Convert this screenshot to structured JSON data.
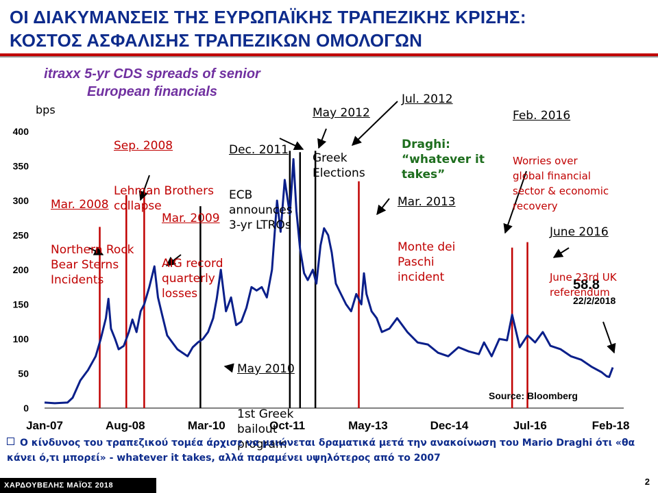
{
  "header": {
    "title_line1": "ΟΙ ΔΙΑΚΥΜΑΝΣΕΙΣ ΤΗΣ ΕΥΡΩΠΑΪΚΗΣ ΤΡΑΠΕΖΙΚΗΣ ΚΡΙΣΗΣ:",
    "title_line2": "ΚΟΣΤΟΣ ΑΣΦΑΛΙΣΗΣ ΤΡΑΠΕΖΙΚΩΝ ΟΜΟΛΟΓΩΝ"
  },
  "colors": {
    "title": "#0d2b8c",
    "accent_red": "#c00000",
    "series": "#0a1f8a",
    "green": "#1e6e1e"
  },
  "chart_data": {
    "type": "line",
    "title_line1": "itraxx 5-yr CDS spreads of senior",
    "title_line2": "European financials",
    "ylabel": "bps",
    "ylim": [
      0,
      400
    ],
    "yticks": [
      0,
      50,
      100,
      150,
      200,
      250,
      300,
      350,
      400
    ],
    "xlim": [
      2007.0,
      2018.2
    ],
    "xticks": [
      {
        "label": "Jan-07",
        "x": 2007.0
      },
      {
        "label": "Aug-08",
        "x": 2008.58
      },
      {
        "label": "Mar-10",
        "x": 2010.17
      },
      {
        "label": "Oct-11",
        "x": 2011.75
      },
      {
        "label": "May-13",
        "x": 2013.33
      },
      {
        "label": "Dec-14",
        "x": 2014.92
      },
      {
        "label": "Jul-16",
        "x": 2016.5
      },
      {
        "label": "Feb-18",
        "x": 2018.08
      }
    ],
    "series": [
      {
        "x": [
          2007.0,
          2007.2,
          2007.45,
          2007.55,
          2007.7,
          2007.85,
          2008.0,
          2008.1,
          2008.2,
          2008.25,
          2008.3,
          2008.38,
          2008.45,
          2008.55,
          2008.65,
          2008.72,
          2008.8,
          2008.88,
          2008.95,
          2009.05,
          2009.15,
          2009.22,
          2009.3,
          2009.4,
          2009.5,
          2009.6,
          2009.7,
          2009.8,
          2009.9,
          2010.0,
          2010.1,
          2010.2,
          2010.3,
          2010.37,
          2010.45,
          2010.55,
          2010.65,
          2010.75,
          2010.85,
          2010.95,
          2011.05,
          2011.15,
          2011.25,
          2011.35,
          2011.45,
          2011.55,
          2011.62,
          2011.7,
          2011.8,
          2011.87,
          2011.93,
          2012.0,
          2012.08,
          2012.15,
          2012.25,
          2012.32,
          2012.4,
          2012.47,
          2012.55,
          2012.62,
          2012.7,
          2012.8,
          2012.9,
          2013.0,
          2013.1,
          2013.2,
          2013.25,
          2013.3,
          2013.4,
          2013.5,
          2013.6,
          2013.75,
          2013.9,
          2014.1,
          2014.3,
          2014.5,
          2014.7,
          2014.9,
          2015.1,
          2015.3,
          2015.5,
          2015.6,
          2015.75,
          2015.9,
          2016.05,
          2016.15,
          2016.3,
          2016.45,
          2016.5,
          2016.6,
          2016.75,
          2016.9,
          2017.1,
          2017.3,
          2017.5,
          2017.7,
          2017.9,
          2018.0,
          2018.05,
          2018.12
        ],
        "y": [
          8,
          7,
          8,
          15,
          40,
          55,
          75,
          100,
          130,
          158,
          115,
          100,
          85,
          90,
          110,
          128,
          110,
          140,
          150,
          175,
          205,
          160,
          135,
          105,
          95,
          85,
          80,
          75,
          88,
          95,
          100,
          110,
          130,
          158,
          200,
          140,
          160,
          120,
          125,
          145,
          175,
          170,
          175,
          160,
          200,
          300,
          255,
          330,
          280,
          360,
          285,
          230,
          195,
          185,
          200,
          180,
          235,
          260,
          250,
          225,
          180,
          165,
          150,
          140,
          165,
          150,
          195,
          165,
          140,
          130,
          110,
          115,
          130,
          110,
          95,
          92,
          80,
          75,
          88,
          82,
          78,
          95,
          75,
          100,
          98,
          135,
          88,
          105,
          102,
          95,
          110,
          90,
          85,
          75,
          70,
          60,
          52,
          46,
          45,
          58.8
        ]
      }
    ],
    "events": [
      {
        "x": 2008.08,
        "color": "#c00000",
        "top": 262
      },
      {
        "x": 2008.6,
        "color": "#c00000",
        "top": 308
      },
      {
        "x": 2008.95,
        "color": "#c00000",
        "top": 318
      },
      {
        "x": 2010.05,
        "color": "#000000",
        "top": 292
      },
      {
        "x": 2011.8,
        "color": "#000000",
        "top": 372
      },
      {
        "x": 2012.0,
        "color": "#000000",
        "top": 370
      },
      {
        "x": 2012.3,
        "color": "#000000",
        "top": 372
      },
      {
        "x": 2013.15,
        "color": "#c00000",
        "top": 328
      },
      {
        "x": 2016.15,
        "color": "#c00000",
        "top": 232
      },
      {
        "x": 2016.45,
        "color": "#c00000",
        "top": 240
      }
    ],
    "annotations": [
      {
        "title": "Mar. 2008",
        "body": "Northern Rock\nBear Sterns\nIncidents",
        "color": "red"
      },
      {
        "title": "Sep. 2008",
        "body": "Lehman Brothers\ncollapse",
        "color": "red"
      },
      {
        "title": "Mar. 2009",
        "body": "AIG record\nquarterly\nlosses",
        "color": "red"
      },
      {
        "title": "Dec. 2011",
        "body": "ECB\nannounces\n3-yr LTROs",
        "color": "black"
      },
      {
        "title": "May 2012",
        "body": "Greek\nElections",
        "color": "black"
      },
      {
        "title": "Jul. 2012",
        "body": "Draghi:\n“whatever it\ntakes”",
        "color": "green"
      },
      {
        "title": "Feb. 2016",
        "body": "Worries over\nglobal financial\nsector & economic\nrecovery",
        "color": "red"
      },
      {
        "title": "Mar. 2013",
        "body": "Monte dei\nPaschi\nincident",
        "color": "red"
      },
      {
        "title": "June 2016",
        "body": "June 23rd UK\nreferendum",
        "color": "red"
      },
      {
        "title": "May 2010",
        "body": "1st Greek\nbailout\nprogram",
        "color": "black"
      }
    ],
    "last_value": "58.8",
    "last_date": "22/2/2018",
    "source": "Source: Bloomberg"
  },
  "footer": {
    "note": "Ο κίνδυνος του τραπεζικού τομέα άρχισε να μειώνεται δραματικά μετά την ανακοίνωση του Mario Draghi  ότι «θα κάνει ό,τι μπορεί»  - whatever it takes, αλλά παραμένει υψηλότερος από το  2007",
    "author": "ΧΑΡΔΟΥΒΕΛΗΣ ΜΑΪΟΣ 2018",
    "page_number": "2"
  }
}
